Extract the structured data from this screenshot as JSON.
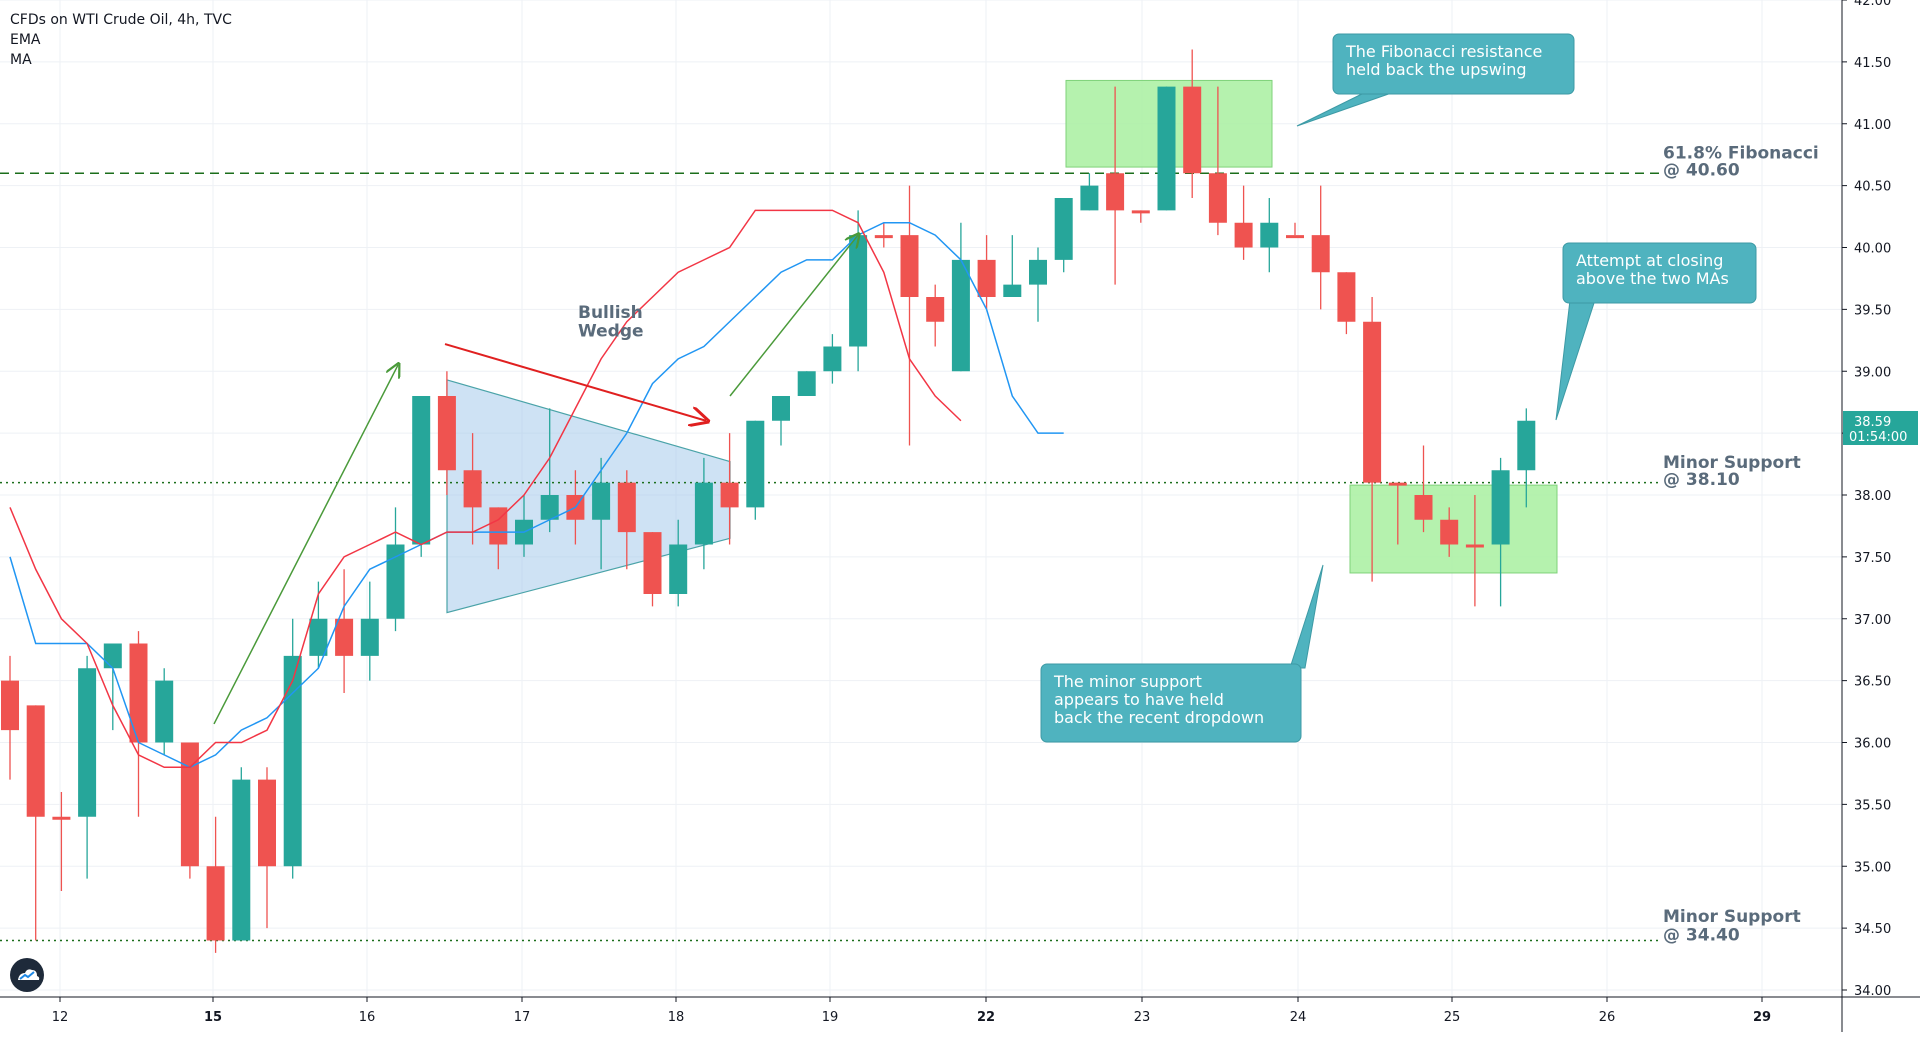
{
  "legend": {
    "title": "CFDs on WTI Crude Oil, 4h, TVC",
    "line2": "EMA",
    "line3": "MA"
  },
  "colors": {
    "up": "#26a69a",
    "down": "#ef5350",
    "neutral": "#b07d3a",
    "ema": "#2196f3",
    "ma": "#f23645",
    "fib": "#1b6e1b",
    "support": "#1b6e1b",
    "callout": "#4fb3bf",
    "green_box": "#a8f0a0",
    "wedge": "#9ec5ea"
  },
  "chart_data": {
    "type": "candlestick",
    "title": "CFDs on WTI Crude Oil, 4h, TVC",
    "ylim": [
      34,
      42
    ],
    "y_ticks": [
      "34.00",
      "34.50",
      "35.00",
      "35.50",
      "36.00",
      "36.50",
      "37.00",
      "37.50",
      "38.00",
      "38.50",
      "39.00",
      "39.50",
      "40.00",
      "40.50",
      "41.00",
      "41.50",
      "42.00"
    ],
    "x_ticks": [
      "12",
      "15",
      "16",
      "17",
      "18",
      "19",
      "22",
      "23",
      "24",
      "25",
      "26",
      "29"
    ],
    "candles": [
      {
        "o": 36.5,
        "h": 36.7,
        "l": 35.7,
        "c": 36.1
      },
      {
        "o": 36.3,
        "h": 36.3,
        "l": 34.4,
        "c": 35.4
      },
      {
        "o": 35.4,
        "h": 35.6,
        "l": 34.8,
        "c": 35.4
      },
      {
        "o": 35.4,
        "h": 36.7,
        "l": 34.9,
        "c": 36.6
      },
      {
        "o": 36.6,
        "h": 36.8,
        "l": 36.1,
        "c": 36.8
      },
      {
        "o": 36.8,
        "h": 36.9,
        "l": 35.4,
        "c": 36.0
      },
      {
        "o": 36.0,
        "h": 36.6,
        "l": 35.9,
        "c": 36.5
      },
      {
        "o": 36.0,
        "h": 36.0,
        "l": 34.9,
        "c": 35.0
      },
      {
        "o": 35.0,
        "h": 35.4,
        "l": 34.3,
        "c": 34.4
      },
      {
        "o": 34.4,
        "h": 35.8,
        "l": 34.4,
        "c": 35.7
      },
      {
        "o": 35.7,
        "h": 35.8,
        "l": 34.5,
        "c": 35.0
      },
      {
        "o": 35.0,
        "h": 37.0,
        "l": 34.9,
        "c": 36.7
      },
      {
        "o": 36.7,
        "h": 37.3,
        "l": 36.6,
        "c": 37.0
      },
      {
        "o": 37.0,
        "h": 37.4,
        "l": 36.4,
        "c": 36.7
      },
      {
        "o": 36.7,
        "h": 37.3,
        "l": 36.5,
        "c": 37.0
      },
      {
        "o": 37.0,
        "h": 37.9,
        "l": 36.9,
        "c": 37.6
      },
      {
        "o": 37.6,
        "h": 38.8,
        "l": 37.5,
        "c": 38.8
      },
      {
        "o": 38.8,
        "h": 39.0,
        "l": 38.0,
        "c": 38.2
      },
      {
        "o": 38.2,
        "h": 38.5,
        "l": 37.6,
        "c": 37.9
      },
      {
        "o": 37.9,
        "h": 37.9,
        "l": 37.4,
        "c": 37.6
      },
      {
        "o": 37.6,
        "h": 38.0,
        "l": 37.5,
        "c": 37.8
      },
      {
        "o": 37.8,
        "h": 38.7,
        "l": 37.7,
        "c": 38.0
      },
      {
        "o": 38.0,
        "h": 38.2,
        "l": 37.6,
        "c": 37.8
      },
      {
        "o": 37.8,
        "h": 38.3,
        "l": 37.4,
        "c": 38.1
      },
      {
        "o": 38.1,
        "h": 38.2,
        "l": 37.4,
        "c": 37.7
      },
      {
        "o": 37.7,
        "h": 37.7,
        "l": 37.1,
        "c": 37.2
      },
      {
        "o": 37.2,
        "h": 37.8,
        "l": 37.1,
        "c": 37.6
      },
      {
        "o": 37.6,
        "h": 38.3,
        "l": 37.4,
        "c": 38.1
      },
      {
        "o": 38.1,
        "h": 38.5,
        "l": 37.6,
        "c": 37.9
      },
      {
        "o": 37.9,
        "h": 38.6,
        "l": 37.8,
        "c": 38.6
      },
      {
        "o": 38.6,
        "h": 38.8,
        "l": 38.4,
        "c": 38.8
      },
      {
        "o": 38.8,
        "h": 39.0,
        "l": 38.8,
        "c": 39.0
      },
      {
        "o": 39.0,
        "h": 39.3,
        "l": 38.9,
        "c": 39.2
      },
      {
        "o": 39.2,
        "h": 40.3,
        "l": 39.0,
        "c": 40.1
      },
      {
        "o": 40.1,
        "h": 40.2,
        "l": 40.0,
        "c": 40.1
      },
      {
        "o": 40.1,
        "h": 40.5,
        "l": 38.4,
        "c": 39.6
      },
      {
        "o": 39.6,
        "h": 39.7,
        "l": 39.2,
        "c": 39.4
      },
      {
        "o": 39.0,
        "h": 40.2,
        "l": 39.0,
        "c": 39.9
      },
      {
        "o": 39.9,
        "h": 40.1,
        "l": 39.5,
        "c": 39.6
      },
      {
        "o": 39.6,
        "h": 40.1,
        "l": 39.6,
        "c": 39.7
      },
      {
        "o": 39.7,
        "h": 40.0,
        "l": 39.4,
        "c": 39.9
      },
      {
        "o": 39.9,
        "h": 40.4,
        "l": 39.8,
        "c": 40.4
      },
      {
        "o": 40.3,
        "h": 40.6,
        "l": 40.3,
        "c": 40.5
      },
      {
        "o": 40.6,
        "h": 41.3,
        "l": 39.7,
        "c": 40.3
      },
      {
        "o": 40.3,
        "h": 40.3,
        "l": 40.2,
        "c": 40.3
      },
      {
        "o": 40.3,
        "h": 41.3,
        "l": 40.3,
        "c": 41.3
      },
      {
        "o": 41.3,
        "h": 41.6,
        "l": 40.4,
        "c": 40.6
      },
      {
        "o": 40.6,
        "h": 41.3,
        "l": 40.1,
        "c": 40.2
      },
      {
        "o": 40.2,
        "h": 40.5,
        "l": 39.9,
        "c": 40.0
      },
      {
        "o": 40.0,
        "h": 40.4,
        "l": 39.8,
        "c": 40.2
      },
      {
        "o": 40.1,
        "h": 40.2,
        "l": 40.1,
        "c": 40.1
      },
      {
        "o": 40.1,
        "h": 40.5,
        "l": 39.5,
        "c": 39.8
      },
      {
        "o": 39.8,
        "h": 39.8,
        "l": 39.3,
        "c": 39.4
      },
      {
        "o": 39.4,
        "h": 39.6,
        "l": 37.3,
        "c": 38.1
      },
      {
        "o": 38.1,
        "h": 38.1,
        "l": 37.6,
        "c": 38.1
      },
      {
        "o": 38.0,
        "h": 38.4,
        "l": 37.7,
        "c": 37.8
      },
      {
        "o": 37.8,
        "h": 37.9,
        "l": 37.5,
        "c": 37.6
      },
      {
        "o": 37.6,
        "h": 38.0,
        "l": 37.1,
        "c": 37.6
      },
      {
        "o": 37.6,
        "h": 38.3,
        "l": 37.1,
        "c": 38.2
      },
      {
        "o": 38.2,
        "h": 38.7,
        "l": 37.9,
        "c": 38.6
      }
    ],
    "ema": [
      37.5,
      36.8,
      36.8,
      36.8,
      36.6,
      36.0,
      35.9,
      35.8,
      35.9,
      36.1,
      36.2,
      36.4,
      36.6,
      37.1,
      37.4,
      37.5,
      37.6,
      37.7,
      37.7,
      37.7,
      37.7,
      37.8,
      37.9,
      38.2,
      38.5,
      38.9,
      39.1,
      39.2,
      39.4,
      39.6,
      39.8,
      39.9,
      39.9,
      40.1,
      40.2,
      40.2,
      40.1,
      39.9,
      39.5,
      38.8,
      38.5,
      38.5
    ],
    "ma": [
      37.9,
      37.4,
      37.0,
      36.8,
      36.3,
      35.9,
      35.8,
      35.8,
      36.0,
      36.0,
      36.1,
      36.5,
      37.2,
      37.5,
      37.6,
      37.7,
      37.6,
      37.7,
      37.7,
      37.8,
      38.0,
      38.3,
      38.7,
      39.1,
      39.4,
      39.6,
      39.8,
      39.9,
      40.0,
      40.3,
      40.3,
      40.3,
      40.3,
      40.2,
      39.8,
      39.1,
      38.8,
      38.6
    ],
    "last_price": "38.59",
    "countdown": "01:54:00"
  },
  "annotations": {
    "fib_label_1": "61.8% Fibonacci",
    "fib_label_2": "@ 40.60",
    "support1_label_1": "Minor Support",
    "support1_label_2": "@ 38.10",
    "support2_label_1": "Minor Support",
    "support2_label_2": "@ 34.40",
    "wedge_label_1": "Bullish",
    "wedge_label_2": "Wedge",
    "callout_fib_1": "The Fibonacci resistance",
    "callout_fib_2": "held back the upswing",
    "callout_ma_1": "Attempt at closing",
    "callout_ma_2": "above the two MAs",
    "callout_support_1": "The minor support",
    "callout_support_2": "appears to have held",
    "callout_support_3": "back the recent dropdown",
    "fib_level": 40.6,
    "support1_level": 38.1,
    "support2_level": 34.4
  }
}
